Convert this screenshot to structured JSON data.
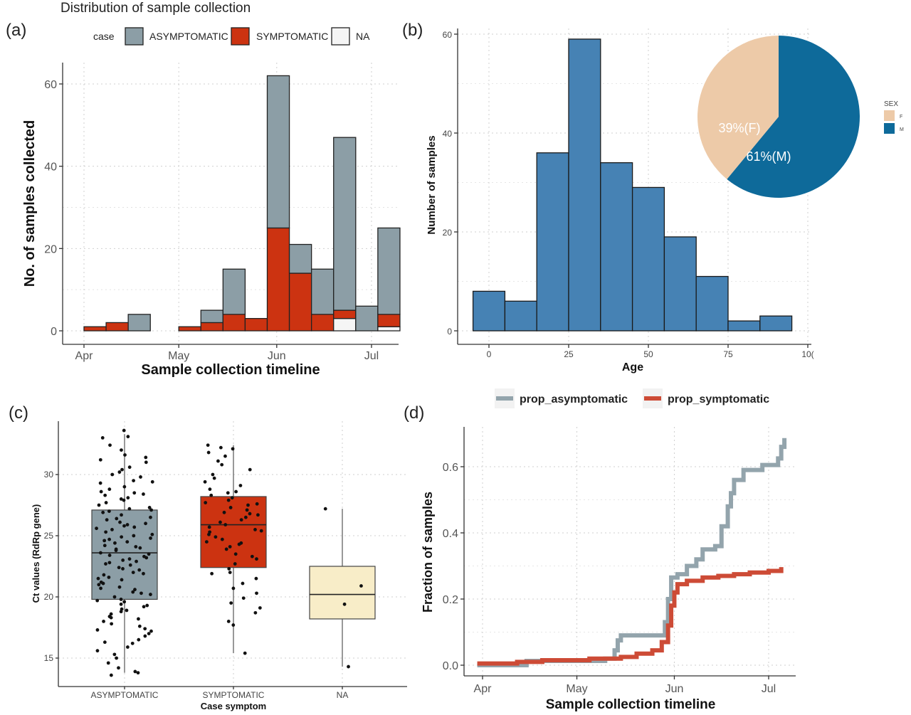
{
  "chart_data": [
    {
      "id": "a",
      "panel_tag": "(a)",
      "type": "bar",
      "title": "Distribution of sample collection",
      "legend_title": "case",
      "legend_position": "top",
      "xlabel": "Sample collection timeline",
      "ylabel": "No. of samples collected",
      "x_ticks": [
        "Apr",
        "May",
        "Jun",
        "Jul"
      ],
      "y_ticks": [
        0,
        20,
        40,
        60
      ],
      "ylim": [
        0,
        65
      ],
      "grid": true,
      "stacked": true,
      "colors": {
        "ASYMPTOMATIC": "#8c9ea6",
        "SYMPTOMATIC": "#cc3311",
        "NA": "#f5f5f5"
      },
      "series_names": [
        "ASYMPTOMATIC",
        "SYMPTOMATIC",
        "NA"
      ],
      "bins": [
        {
          "start": "Apr 1",
          "end": "Apr 8",
          "NA": 0,
          "SYMPTOMATIC": 1,
          "ASYMPTOMATIC": 0
        },
        {
          "start": "Apr 8",
          "end": "Apr 15",
          "NA": 0,
          "SYMPTOMATIC": 2,
          "ASYMPTOMATIC": 0
        },
        {
          "start": "Apr 15",
          "end": "Apr 22",
          "NA": 0,
          "SYMPTOMATIC": 0,
          "ASYMPTOMATIC": 4
        },
        {
          "start": "May 1",
          "end": "May 8",
          "NA": 0,
          "SYMPTOMATIC": 1,
          "ASYMPTOMATIC": 0
        },
        {
          "start": "May 8",
          "end": "May 15",
          "NA": 0,
          "SYMPTOMATIC": 2,
          "ASYMPTOMATIC": 3
        },
        {
          "start": "May 15",
          "end": "May 22",
          "NA": 0,
          "SYMPTOMATIC": 4,
          "ASYMPTOMATIC": 11
        },
        {
          "start": "May 22",
          "end": "May 29",
          "NA": 0,
          "SYMPTOMATIC": 3,
          "ASYMPTOMATIC": 0
        },
        {
          "start": "May 29",
          "end": "Jun 5",
          "NA": 0,
          "SYMPTOMATIC": 25,
          "ASYMPTOMATIC": 37
        },
        {
          "start": "Jun 5",
          "end": "Jun 12",
          "NA": 0,
          "SYMPTOMATIC": 14,
          "ASYMPTOMATIC": 7
        },
        {
          "start": "Jun 12",
          "end": "Jun 19",
          "NA": 0,
          "SYMPTOMATIC": 4,
          "ASYMPTOMATIC": 11
        },
        {
          "start": "Jun 19",
          "end": "Jun 26",
          "NA": 3,
          "SYMPTOMATIC": 2,
          "ASYMPTOMATIC": 42
        },
        {
          "start": "Jun 26",
          "end": "Jul 3",
          "NA": 0,
          "SYMPTOMATIC": 0,
          "ASYMPTOMATIC": 6
        },
        {
          "start": "Jul 3",
          "end": "Jul 10",
          "NA": 1,
          "SYMPTOMATIC": 3,
          "ASYMPTOMATIC": 21
        }
      ]
    },
    {
      "id": "b",
      "panel_tag": "(b)",
      "type": "histogram",
      "xlabel": "Age",
      "ylabel": "Number of samples",
      "x_ticks": [
        0,
        25,
        50,
        75,
        "10("
      ],
      "y_ticks": [
        0,
        20,
        40,
        60
      ],
      "xlim": [
        -6,
        101
      ],
      "ylim": [
        0,
        62
      ],
      "grid": true,
      "bar_color": "#4682b4",
      "bins": [
        {
          "x0": -5,
          "x1": 5,
          "count": 8
        },
        {
          "x0": 5,
          "x1": 15,
          "count": 6
        },
        {
          "x0": 15,
          "x1": 25,
          "count": 36
        },
        {
          "x0": 25,
          "x1": 35,
          "count": 59
        },
        {
          "x0": 35,
          "x1": 45,
          "count": 34
        },
        {
          "x0": 45,
          "x1": 55,
          "count": 29
        },
        {
          "x0": 55,
          "x1": 65,
          "count": 19
        },
        {
          "x0": 65,
          "x1": 75,
          "count": 11
        },
        {
          "x0": 75,
          "x1": 85,
          "count": 2
        },
        {
          "x0": 85,
          "x1": 95,
          "count": 3
        }
      ],
      "inset_pie": {
        "type": "pie",
        "legend_title": "SEX",
        "legend_position": "right",
        "slices": [
          {
            "label": "M",
            "value": 61,
            "text": "61%(M)",
            "color": "#0e6a9a"
          },
          {
            "label": "F",
            "value": 39,
            "text": "39%(F)",
            "color": "#edcaa8"
          }
        ]
      }
    },
    {
      "id": "c",
      "panel_tag": "(c)",
      "type": "box",
      "xlabel": "Case symptom",
      "ylabel": "Ct values (RdRp gene)",
      "categories": [
        "ASYMPTOMATIC",
        "SYMPTOMATIC",
        "NA"
      ],
      "y_ticks": [
        15,
        20,
        25,
        30
      ],
      "ylim": [
        13,
        34.5
      ],
      "grid": true,
      "boxes": [
        {
          "name": "ASYMPTOMATIC",
          "min": 13.8,
          "q1": 19.8,
          "median": 23.6,
          "q3": 27.1,
          "max": 33.3,
          "color": "#8c9ea6"
        },
        {
          "name": "SYMPTOMATIC",
          "min": 15.4,
          "q1": 22.4,
          "median": 25.9,
          "q3": 28.2,
          "max": 32.4,
          "color": "#cc3311"
        },
        {
          "name": "NA",
          "min": 14.3,
          "q1": 18.2,
          "median": 20.2,
          "q3": 22.5,
          "max": 27.2,
          "color": "#f8edc8"
        }
      ],
      "points": {
        "ASYMPTOMATIC": [
          33.6,
          33.1,
          33.0,
          32.4,
          32.0,
          31.6,
          31.2,
          31.0,
          30.6,
          30.2,
          30.0,
          29.8,
          29.5,
          29.3,
          29.0,
          28.8,
          28.5,
          28.3,
          28.1,
          27.9,
          27.7,
          27.5,
          27.3,
          27.1,
          26.9,
          26.7,
          26.5,
          26.3,
          26.1,
          25.9,
          25.7,
          25.5,
          25.3,
          25.1,
          24.9,
          24.7,
          24.5,
          24.4,
          24.2,
          24.0,
          23.9,
          23.8,
          23.6,
          23.5,
          23.4,
          23.2,
          23.0,
          22.8,
          22.6,
          22.4,
          22.2,
          22.0,
          21.8,
          21.6,
          21.4,
          21.2,
          21.0,
          20.8,
          20.6,
          20.4,
          20.2,
          20.0,
          19.8,
          19.6,
          19.4,
          19.2,
          19.0,
          18.8,
          18.6,
          18.4,
          18.2,
          18.0,
          17.8,
          17.6,
          17.4,
          17.2,
          17.0,
          16.8,
          16.5,
          16.2,
          15.9,
          15.6,
          15.3,
          15.0,
          14.6,
          14.2,
          13.9,
          13.8,
          13.6,
          24.8,
          25.6,
          26.4,
          27.2,
          28.0,
          28.6,
          29.4,
          30.4,
          31.4,
          23.1,
          22.3,
          21.1,
          20.3,
          19.3,
          18.3,
          17.3,
          16.3,
          22.9,
          24.1,
          25.0,
          26.0,
          27.0,
          28.4,
          22.7,
          21.5,
          20.7,
          19.7,
          18.9,
          21.9,
          23.3,
          24.6,
          25.8
        ],
        "SYMPTOMATIC": [
          32.4,
          32.2,
          32.1,
          31.8,
          31.5,
          31.1,
          30.8,
          30.4,
          30.0,
          29.7,
          29.4,
          29.1,
          28.8,
          28.5,
          28.3,
          28.1,
          27.9,
          27.7,
          27.5,
          27.3,
          27.1,
          26.9,
          26.7,
          26.5,
          26.3,
          26.1,
          25.9,
          25.7,
          25.5,
          25.3,
          25.1,
          24.9,
          24.7,
          24.5,
          24.3,
          24.1,
          23.9,
          23.5,
          23.1,
          22.7,
          22.3,
          21.9,
          21.5,
          21.1,
          20.7,
          20.3,
          19.9,
          19.5,
          19.1,
          18.7,
          18.0,
          17.7,
          15.4,
          26.8,
          27.6,
          28.6,
          25.4,
          24.4,
          23.3,
          22.0
        ],
        "NA": [
          27.2,
          20.9,
          19.4,
          14.3
        ]
      }
    },
    {
      "id": "d",
      "panel_tag": "(d)",
      "type": "line",
      "step": true,
      "xlabel": "Sample collection timeline",
      "ylabel": "Fraction of samples",
      "x_ticks": [
        "Apr",
        "May",
        "Jun",
        "Jul"
      ],
      "y_ticks": [
        0.0,
        0.2,
        0.4,
        0.6
      ],
      "y_tick_labels": [
        "0.0",
        "0.2",
        "0.4",
        "0.6"
      ],
      "ylim": [
        -0.03,
        0.7
      ],
      "grid": true,
      "legend_position": "top",
      "x_values_note_units": "days",
      "series": [
        {
          "name": "prop_asymptomatic",
          "color": "#93a4ac",
          "points": [
            [
              "Mar 31",
              0.0
            ],
            [
              "Apr 13",
              0.0
            ],
            [
              "Apr 15",
              0.013
            ],
            [
              "May 10",
              0.02
            ],
            [
              "May 13",
              0.045
            ],
            [
              "May 14",
              0.075
            ],
            [
              "May 15",
              0.09
            ],
            [
              "May 28",
              0.09
            ],
            [
              "May 29",
              0.13
            ],
            [
              "May 30",
              0.2
            ],
            [
              "May 31",
              0.265
            ],
            [
              "Jun 2",
              0.275
            ],
            [
              "Jun 5",
              0.3
            ],
            [
              "Jun 8",
              0.32
            ],
            [
              "Jun 10",
              0.35
            ],
            [
              "Jun 14",
              0.36
            ],
            [
              "Jun 16",
              0.42
            ],
            [
              "Jun 18",
              0.48
            ],
            [
              "Jun 19",
              0.52
            ],
            [
              "Jun 20",
              0.56
            ],
            [
              "Jun 23",
              0.59
            ],
            [
              "Jun 28",
              0.59
            ],
            [
              "Jun 29",
              0.605
            ],
            [
              "Jul 4",
              0.625
            ],
            [
              "Jul 5",
              0.66
            ],
            [
              "Jul 6",
              0.68
            ]
          ]
        },
        {
          "name": "prop_symptomatic",
          "color": "#cd4b36",
          "points": [
            [
              "Mar 31",
              0.005
            ],
            [
              "Apr 12",
              0.01
            ],
            [
              "Apr 20",
              0.015
            ],
            [
              "May 5",
              0.02
            ],
            [
              "May 15",
              0.025
            ],
            [
              "May 20",
              0.035
            ],
            [
              "May 25",
              0.045
            ],
            [
              "May 28",
              0.07
            ],
            [
              "May 30",
              0.12
            ],
            [
              "May 31",
              0.18
            ],
            [
              "Jun 1",
              0.22
            ],
            [
              "Jun 2",
              0.245
            ],
            [
              "Jun 5",
              0.255
            ],
            [
              "Jun 10",
              0.265
            ],
            [
              "Jun 15",
              0.27
            ],
            [
              "Jun 20",
              0.275
            ],
            [
              "Jun 25",
              0.28
            ],
            [
              "Jul 1",
              0.285
            ],
            [
              "Jul 5",
              0.29
            ]
          ]
        }
      ]
    }
  ]
}
